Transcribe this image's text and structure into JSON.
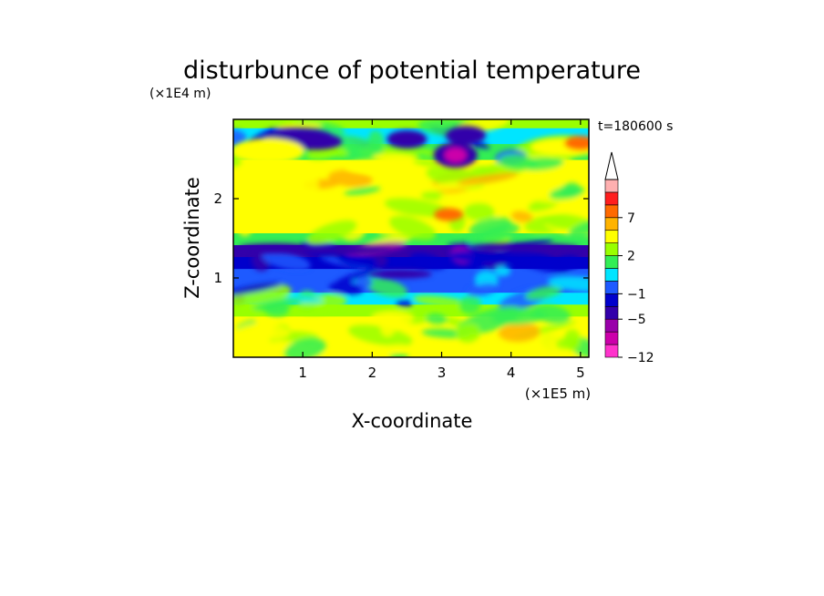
{
  "chart_data": {
    "type": "heatmap",
    "title": "disturbunce of potential temperature",
    "time_label": "t=180600 s",
    "xlabel": "X-coordinate",
    "ylabel": "Z-coordinate",
    "x_unit": "(×1E5 m)",
    "y_unit": "(×1E4 m)",
    "x_range": [
      0,
      5.12
    ],
    "y_range": [
      0,
      3.0
    ],
    "x_ticks": [
      {
        "value": 1,
        "label": "1"
      },
      {
        "value": 2,
        "label": "2"
      },
      {
        "value": 3,
        "label": "3"
      },
      {
        "value": 4,
        "label": "4"
      },
      {
        "value": 5,
        "label": "5"
      }
    ],
    "y_ticks": [
      {
        "value": 1,
        "label": "1"
      },
      {
        "value": 2,
        "label": "2"
      }
    ],
    "colorbar": {
      "levels": [
        -12,
        -9,
        -7,
        -5,
        -3,
        -1,
        0,
        1,
        2,
        3,
        5,
        7,
        9,
        11
      ],
      "colors": [
        "#ff33cc",
        "#cc00aa",
        "#9900aa",
        "#3300aa",
        "#0000cc",
        "#1e5aff",
        "#00e5ff",
        "#33ee55",
        "#99ff00",
        "#ffff00",
        "#ffb300",
        "#ff6a00",
        "#ff1e1e",
        "#ffb0b0"
      ],
      "tick_labels": [
        {
          "value": -12,
          "label": "−12"
        },
        {
          "value": -5,
          "label": "−5"
        },
        {
          "value": -1,
          "label": "−1"
        },
        {
          "value": 2,
          "label": "2"
        },
        {
          "value": 7,
          "label": "7"
        }
      ],
      "extend": "max"
    },
    "profile": [
      {
        "z": 0.05,
        "value": 3.0
      },
      {
        "z": 0.25,
        "value": 3.5
      },
      {
        "z": 0.45,
        "value": 3.0
      },
      {
        "z": 0.6,
        "value": 2.0
      },
      {
        "z": 0.75,
        "value": 0.5
      },
      {
        "z": 0.9,
        "value": -0.5
      },
      {
        "z": 1.05,
        "value": -0.8
      },
      {
        "z": 1.2,
        "value": -2.0
      },
      {
        "z": 1.35,
        "value": -3.5
      },
      {
        "z": 1.5,
        "value": 1.5
      },
      {
        "z": 1.65,
        "value": 3.0
      },
      {
        "z": 1.8,
        "value": 4.0
      },
      {
        "z": 2.0,
        "value": 3.0
      },
      {
        "z": 2.2,
        "value": 4.5
      },
      {
        "z": 2.4,
        "value": 3.0
      },
      {
        "z": 2.6,
        "value": 1.0
      },
      {
        "z": 2.8,
        "value": 0.0
      },
      {
        "z": 3.0,
        "value": 2.0
      }
    ]
  }
}
